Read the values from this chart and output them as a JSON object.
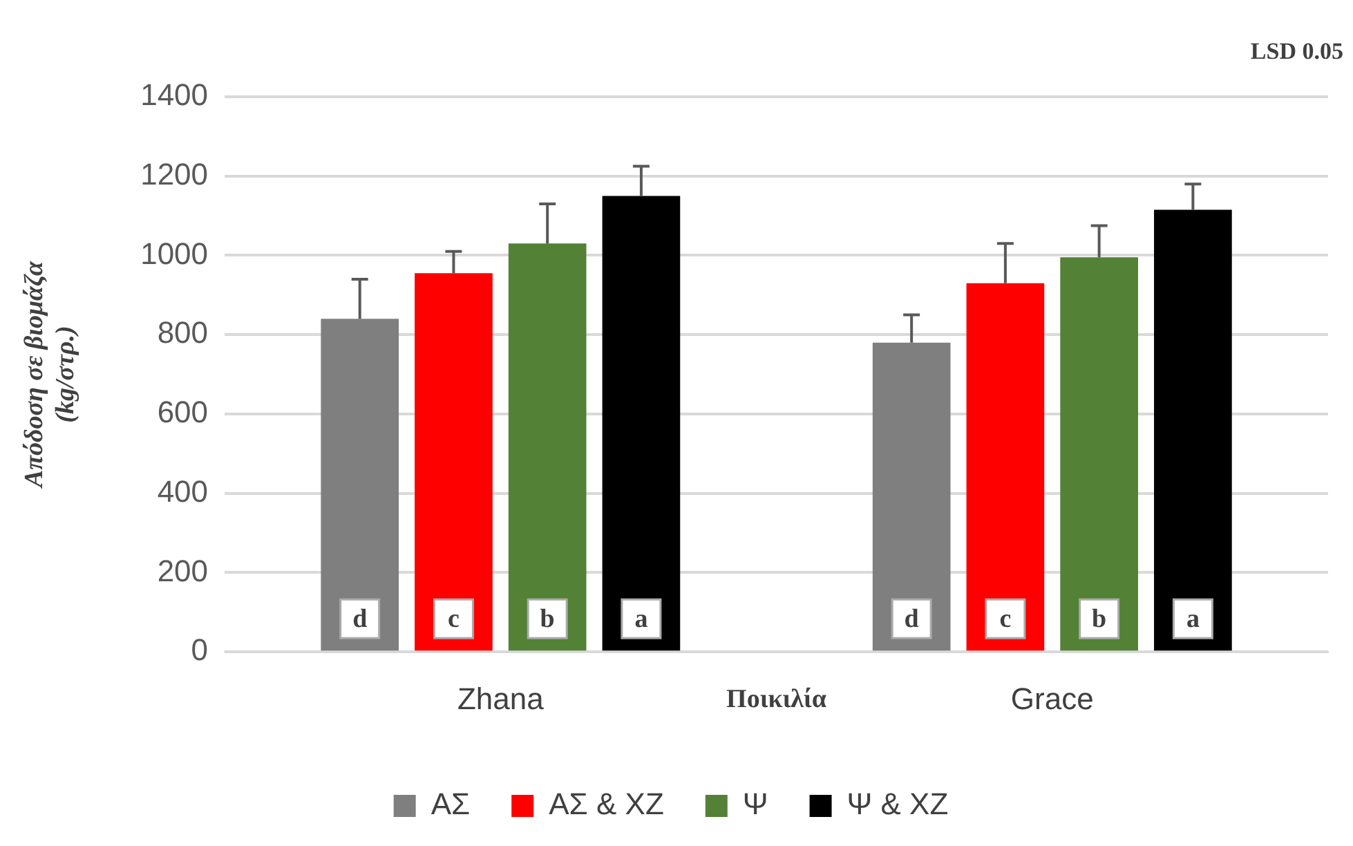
{
  "chart_data": {
    "type": "bar",
    "categories": [
      "Zhana",
      "Grace"
    ],
    "xlabel": "Ποικιλία",
    "ylabel": "Απόδοση σε βιομάζα\n(kg/στρ.)",
    "annotations": [
      "LSD 0.05"
    ],
    "series": [
      {
        "name": "ΑΣ",
        "color": "#7f7f7f",
        "values": [
          840,
          780
        ],
        "errors": [
          [
            840,
            940
          ],
          [
            780,
            850
          ]
        ],
        "value_labels": [
          "d",
          "d"
        ]
      },
      {
        "name": "ΑΣ & ΧΖ",
        "color": "#ff0000",
        "values": [
          955,
          930
        ],
        "errors": [
          [
            955,
            1010
          ],
          [
            930,
            1030
          ]
        ],
        "value_labels": [
          "c",
          "c"
        ]
      },
      {
        "name": "Ψ",
        "color": "#538135",
        "values": [
          1030,
          995
        ],
        "errors": [
          [
            1030,
            1130
          ],
          [
            995,
            1075
          ]
        ],
        "value_labels": [
          "b",
          "b"
        ]
      },
      {
        "name": "Ψ & ΧΖ",
        "color": "#000000",
        "values": [
          1150,
          1115
        ],
        "errors": [
          [
            1150,
            1225
          ],
          [
            1115,
            1180
          ]
        ],
        "value_labels": [
          "a",
          "a"
        ]
      }
    ],
    "ylim": [
      0,
      1400
    ],
    "yticks": [
      0,
      200,
      400,
      600,
      800,
      1000,
      1200,
      1400
    ],
    "grid": "y",
    "legend": "bottom"
  }
}
